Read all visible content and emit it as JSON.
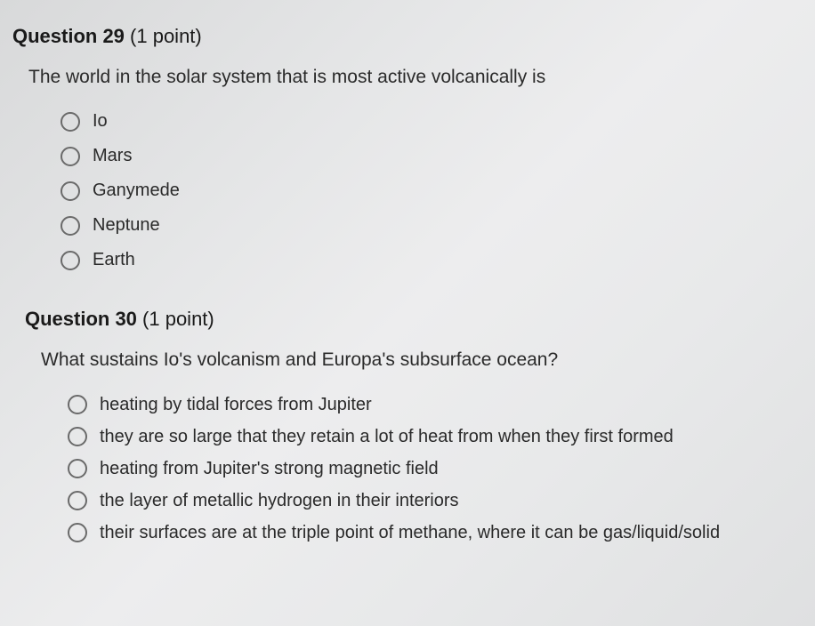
{
  "q29": {
    "number": "Question 29",
    "points": " (1 point)",
    "text": "The world in the solar system that is most active volcanically is",
    "options": [
      "Io",
      "Mars",
      "Ganymede",
      "Neptune",
      "Earth"
    ]
  },
  "q30": {
    "number": "Question 30",
    "points": " (1 point)",
    "text": "What sustains Io's volcanism and Europa's subsurface ocean?",
    "options": [
      "heating by tidal forces from Jupiter",
      "they are so large that they retain a lot of heat from when they first formed",
      "heating from Jupiter's strong magnetic field",
      "the layer of metallic hydrogen in their interiors",
      "their surfaces are at the triple point of methane, where it can be gas/liquid/solid"
    ]
  },
  "colors": {
    "text": "#2a2a2a",
    "radio_border": "#6a6a6a",
    "background_start": "#d8d9da",
    "background_end": "#dfe0e1"
  },
  "typography": {
    "header_fontsize": 22,
    "body_fontsize": 21,
    "option_fontsize": 20
  }
}
